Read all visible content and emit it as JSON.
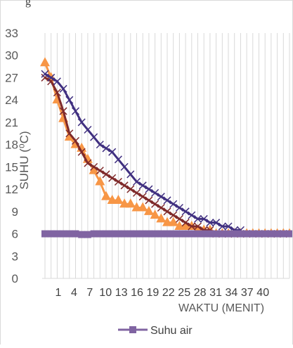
{
  "top_partial_label": "g",
  "chart_data": {
    "type": "line",
    "title": "",
    "xlabel": "WAKTU (MENIT)",
    "ylabel": "SUHU (⁰C)",
    "ylim": [
      0,
      33
    ],
    "yticks": [
      0,
      3,
      6,
      9,
      12,
      15,
      18,
      21,
      24,
      27,
      30,
      33
    ],
    "xlim": [
      1,
      41
    ],
    "xtick_labels": [
      "1",
      "4",
      "7",
      "10",
      "13",
      "16",
      "19",
      "22",
      "25",
      "28",
      "31",
      "34",
      "37",
      "40"
    ],
    "grid": "vertical",
    "legend_position": "bottom",
    "legend": [
      "Suhu air"
    ],
    "series": [
      {
        "name": "",
        "color": "#f79646",
        "marker": "triangle",
        "x": [
          1,
          2,
          3,
          4,
          5,
          6,
          7,
          8,
          9,
          10,
          11,
          12,
          13,
          14,
          15,
          16,
          17,
          18,
          19,
          20,
          21,
          22,
          23,
          24,
          25,
          26,
          27,
          28,
          29,
          30,
          31,
          32,
          33,
          34,
          35,
          36,
          37,
          38,
          39,
          40,
          41
        ],
        "values": [
          29,
          27,
          24,
          21.5,
          19,
          18,
          17.5,
          16,
          14.5,
          13,
          11,
          10.5,
          10.5,
          10,
          10,
          9.5,
          9.5,
          9,
          8.5,
          8,
          7.5,
          7.5,
          7,
          7,
          7,
          6.5,
          6.5,
          6.5,
          6,
          6,
          6,
          6,
          6,
          6,
          6,
          6,
          6,
          6,
          6,
          6,
          6
        ]
      },
      {
        "name": "",
        "color": "#7f2a2a",
        "marker": "x",
        "x": [
          1,
          2,
          3,
          4,
          5,
          6,
          7,
          8,
          9,
          10,
          11,
          12,
          13,
          14,
          15,
          16,
          17,
          18,
          19,
          20,
          21,
          22,
          23,
          24,
          25,
          26,
          27,
          28,
          29,
          30,
          31,
          32,
          33,
          34,
          35,
          36,
          37,
          38,
          39,
          40,
          41
        ],
        "values": [
          27,
          26.5,
          25,
          22.5,
          19.5,
          18.5,
          17,
          15.5,
          15,
          14.5,
          14,
          13.5,
          13,
          12.5,
          12,
          11.5,
          11,
          10.5,
          10,
          9.5,
          9,
          8.5,
          8,
          7.5,
          7,
          7,
          6.5,
          6.5,
          6,
          6,
          6,
          6,
          6,
          6,
          6,
          6,
          6,
          6,
          6,
          6,
          6
        ]
      },
      {
        "name": "",
        "color": "#403080",
        "marker": "x",
        "x": [
          1,
          2,
          3,
          4,
          5,
          6,
          7,
          8,
          9,
          10,
          11,
          12,
          13,
          14,
          15,
          16,
          17,
          18,
          19,
          20,
          21,
          22,
          23,
          24,
          25,
          26,
          27,
          28,
          29,
          30,
          31,
          32,
          33
        ],
        "values": [
          27.5,
          27,
          26.5,
          25.5,
          24,
          22.5,
          21,
          20,
          19,
          18,
          17.5,
          17,
          16,
          15,
          14,
          13,
          12.5,
          12,
          11.5,
          11,
          10.5,
          10,
          9.5,
          9,
          8.5,
          8,
          8,
          7.5,
          7.5,
          7,
          7,
          6.5,
          6.5
        ]
      },
      {
        "name": "Suhu air",
        "color": "#8064a2",
        "marker": "square",
        "x": [
          1,
          2,
          3,
          4,
          5,
          6,
          7,
          8,
          9,
          10,
          11,
          12,
          13,
          14,
          15,
          16,
          17,
          18,
          19,
          20,
          21,
          22,
          23,
          24,
          25,
          26,
          27,
          28,
          29,
          30,
          31,
          32,
          33,
          34,
          35,
          36,
          37,
          38,
          39,
          40,
          41
        ],
        "values": [
          6,
          6,
          6,
          6,
          6,
          6,
          5.9,
          5.9,
          6,
          6,
          6,
          6,
          6,
          6,
          6,
          6,
          6,
          6,
          6,
          6,
          6,
          6,
          6,
          6,
          6,
          6,
          6,
          6,
          6,
          6,
          6,
          6,
          6,
          6,
          6,
          6,
          6,
          6,
          6,
          6,
          6
        ]
      }
    ]
  }
}
